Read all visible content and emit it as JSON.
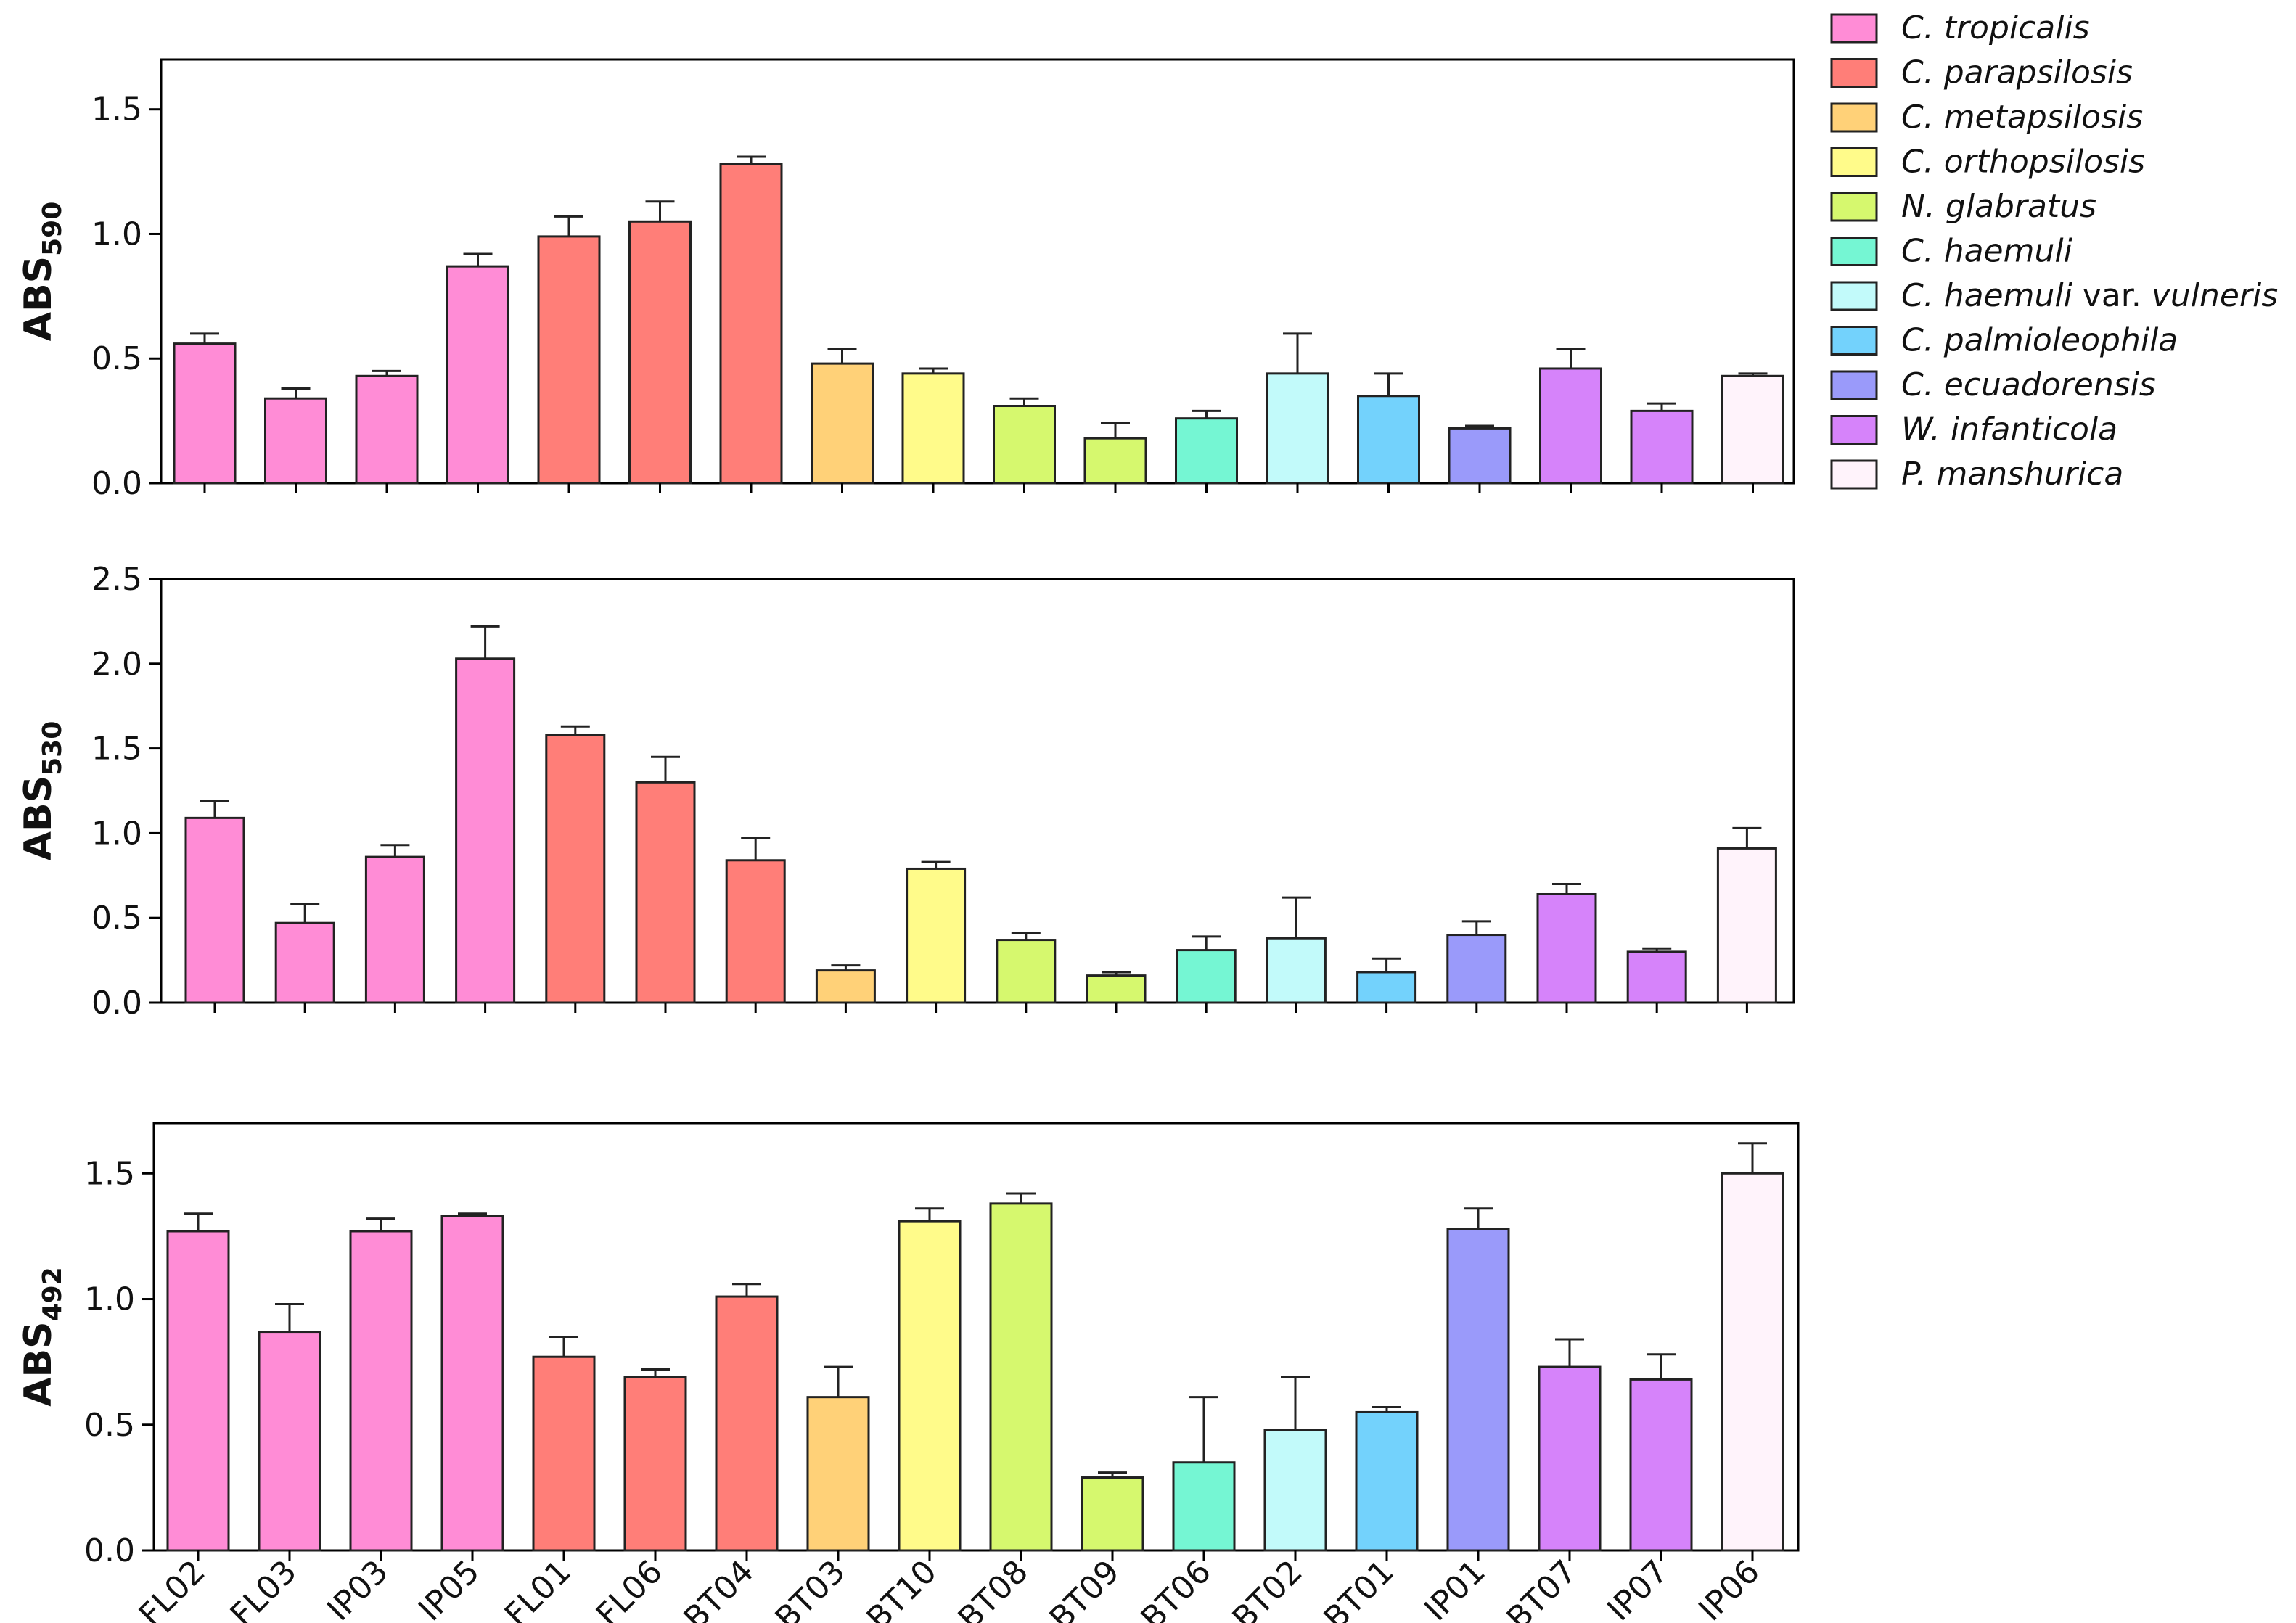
{
  "chart_data": [
    {
      "type": "bar",
      "panel": "top",
      "ylabel_main": "ABS",
      "ylabel_sub": "590",
      "ylim": [
        0,
        1.7
      ],
      "yticks": [
        "0.0",
        "0.5",
        "1.0",
        "1.5"
      ],
      "ytick_values": [
        0,
        0.5,
        1.0,
        1.5
      ],
      "show_xlabels": false,
      "categories": [
        "FL02",
        "FL03",
        "IP03",
        "IP05",
        "FL01",
        "FL06",
        "BT04",
        "BT03",
        "BT10",
        "BT08",
        "BT09",
        "BT06",
        "BT02",
        "BT01",
        "IP01",
        "BT07",
        "IP07",
        "IP06"
      ],
      "series_index": [
        0,
        0,
        0,
        0,
        1,
        1,
        1,
        2,
        3,
        4,
        4,
        5,
        6,
        7,
        8,
        9,
        9,
        10
      ],
      "values": [
        0.56,
        0.34,
        0.43,
        0.87,
        0.99,
        1.05,
        1.28,
        0.48,
        0.44,
        0.31,
        0.18,
        0.26,
        0.44,
        0.35,
        0.22,
        0.46,
        0.29,
        0.43
      ],
      "errors": [
        0.04,
        0.04,
        0.02,
        0.05,
        0.08,
        0.08,
        0.03,
        0.06,
        0.02,
        0.03,
        0.06,
        0.03,
        0.16,
        0.09,
        0.01,
        0.08,
        0.03,
        0.01
      ]
    },
    {
      "type": "bar",
      "panel": "middle",
      "ylabel_main": "ABS",
      "ylabel_sub": "530",
      "ylim": [
        0,
        2.5
      ],
      "yticks": [
        "0.0",
        "0.5",
        "1.0",
        "1.5",
        "2.0",
        "2.5"
      ],
      "ytick_values": [
        0,
        0.5,
        1.0,
        1.5,
        2.0,
        2.5
      ],
      "show_xlabels": false,
      "categories": [
        "FL02",
        "FL03",
        "IP03",
        "IP05",
        "FL01",
        "FL06",
        "BT04",
        "BT03",
        "BT10",
        "BT08",
        "BT09",
        "BT06",
        "BT02",
        "BT01",
        "IP01",
        "BT07",
        "IP07",
        "IP06"
      ],
      "series_index": [
        0,
        0,
        0,
        0,
        1,
        1,
        1,
        2,
        3,
        4,
        4,
        5,
        6,
        7,
        8,
        9,
        9,
        10
      ],
      "values": [
        1.09,
        0.47,
        0.86,
        2.03,
        1.58,
        1.3,
        0.84,
        0.19,
        0.79,
        0.37,
        0.16,
        0.31,
        0.38,
        0.18,
        0.4,
        0.64,
        0.3,
        0.91
      ],
      "errors": [
        0.1,
        0.11,
        0.07,
        0.19,
        0.05,
        0.15,
        0.13,
        0.03,
        0.04,
        0.04,
        0.02,
        0.08,
        0.24,
        0.08,
        0.08,
        0.06,
        0.02,
        0.12
      ]
    },
    {
      "type": "bar",
      "panel": "bottom",
      "ylabel_main": "ABS",
      "ylabel_sub": "492",
      "ylim": [
        0,
        1.7
      ],
      "yticks": [
        "0.0",
        "0.5",
        "1.0",
        "1.5"
      ],
      "ytick_values": [
        0,
        0.5,
        1.0,
        1.5
      ],
      "show_xlabels": true,
      "categories": [
        "FL02",
        "FL03",
        "IP03",
        "IP05",
        "FL01",
        "FL06",
        "BT04",
        "BT03",
        "BT10",
        "BT08",
        "BT09",
        "BT06",
        "BT02",
        "BT01",
        "IP01",
        "BT07",
        "IP07",
        "IP06"
      ],
      "series_index": [
        0,
        0,
        0,
        0,
        1,
        1,
        1,
        2,
        3,
        4,
        4,
        5,
        6,
        7,
        8,
        9,
        9,
        10
      ],
      "values": [
        1.27,
        0.87,
        1.27,
        1.33,
        0.77,
        0.69,
        1.01,
        0.61,
        1.31,
        1.38,
        0.29,
        0.35,
        0.48,
        0.55,
        1.28,
        0.73,
        0.68,
        1.5
      ],
      "errors": [
        0.07,
        0.11,
        0.05,
        0.01,
        0.08,
        0.03,
        0.05,
        0.12,
        0.05,
        0.04,
        0.02,
        0.26,
        0.21,
        0.02,
        0.08,
        0.11,
        0.1,
        0.12
      ]
    }
  ],
  "legend": [
    {
      "label": "C. tropicalis",
      "color": "#FF8CD6"
    },
    {
      "label": "C. parapsilosis",
      "color": "#FF7E78"
    },
    {
      "label": "C. metapsilosis",
      "color": "#FFD178"
    },
    {
      "label": "C. orthopsilosis",
      "color": "#FFFB8A"
    },
    {
      "label": "N. glabratus",
      "color": "#D6F86E"
    },
    {
      "label": "C. haemuli",
      "color": "#75F6D3"
    },
    {
      "label": "C. haemuli",
      "label_plain": " var. ",
      "label_tail": "vulneris",
      "color": "#C2FAFA"
    },
    {
      "label": "C. palmioleophila",
      "color": "#73D2FC"
    },
    {
      "label": "C. ecuadorensis",
      "color": "#9A9AFA"
    },
    {
      "label": "W. infanticola",
      "color": "#D683FA"
    },
    {
      "label": "P. manshurica",
      "color": "#FFF3FB"
    }
  ]
}
